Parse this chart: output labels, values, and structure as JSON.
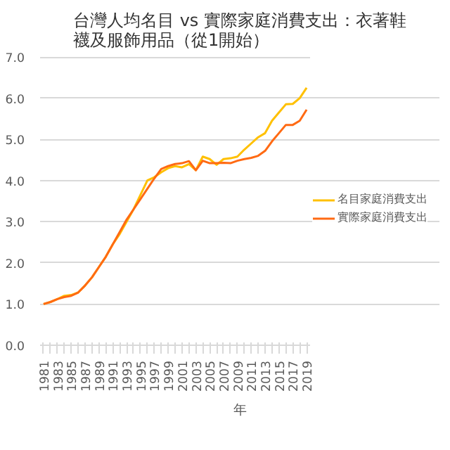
{
  "chart_data": {
    "type": "line",
    "title": "台灣人均名目 vs 實際家庭消費支出：衣著鞋襪及服飾用品（從1開始）",
    "xlabel": "年",
    "categories": [
      "1981",
      null,
      "1983",
      null,
      "1985",
      null,
      "1987",
      null,
      "1989",
      null,
      "1991",
      null,
      "1993",
      null,
      "1995",
      null,
      "1997",
      null,
      "1999",
      null,
      "2001",
      null,
      "2003",
      null,
      "2005",
      null,
      "2007",
      null,
      "2009",
      null,
      "2011",
      null,
      "2013",
      null,
      "2015",
      null,
      "2017",
      null,
      "2019"
    ],
    "series": [
      {
        "name": "名目家庭消費支出",
        "color": "#ffc000",
        "values": [
          1.0,
          1.05,
          1.12,
          1.2,
          1.22,
          1.28,
          1.45,
          1.65,
          1.9,
          2.15,
          2.45,
          2.7,
          3.0,
          3.3,
          3.65,
          4.0,
          4.08,
          4.2,
          4.3,
          4.35,
          4.32,
          4.4,
          4.25,
          4.58,
          4.52,
          4.38,
          4.52,
          4.54,
          4.58,
          4.75,
          4.9,
          5.05,
          5.15,
          5.45,
          5.65,
          5.85,
          5.86,
          6.0,
          6.25
        ]
      },
      {
        "name": "實際家庭消費支出",
        "color": "#ff6a13",
        "values": [
          1.0,
          1.05,
          1.12,
          1.17,
          1.2,
          1.28,
          1.45,
          1.65,
          1.9,
          2.15,
          2.45,
          2.75,
          3.05,
          3.3,
          3.55,
          3.8,
          4.05,
          4.28,
          4.35,
          4.4,
          4.42,
          4.47,
          4.25,
          4.48,
          4.42,
          4.42,
          4.43,
          4.42,
          4.48,
          4.52,
          4.55,
          4.6,
          4.72,
          4.95,
          5.15,
          5.35,
          5.35,
          5.45,
          5.72
        ]
      }
    ],
    "ylim": [
      0,
      7
    ],
    "yticks": [
      {
        "value": 0,
        "label": "0.0"
      },
      {
        "value": 1,
        "label": "1.0"
      },
      {
        "value": 2,
        "label": "2.0"
      },
      {
        "value": 3,
        "label": "3.0"
      },
      {
        "value": 4,
        "label": "4.0"
      },
      {
        "value": 5,
        "label": "5.0"
      },
      {
        "value": 6,
        "label": "6.0"
      },
      {
        "value": 7,
        "label": "7.0"
      }
    ],
    "grid": "y",
    "legend": "right",
    "line_style": "solid"
  }
}
